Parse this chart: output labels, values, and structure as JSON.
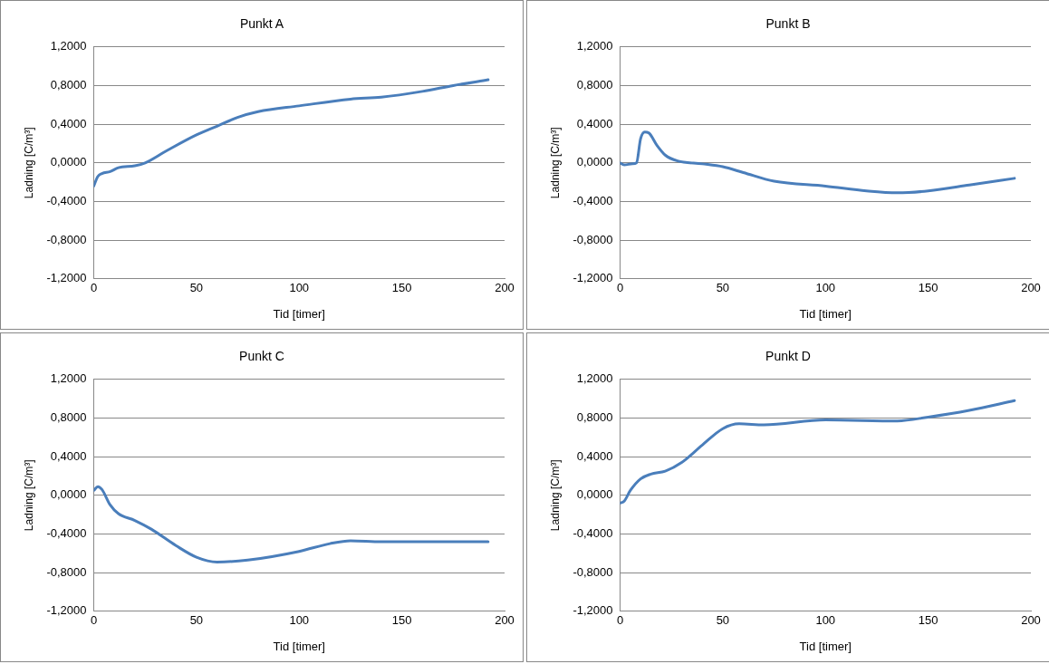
{
  "chart_data": [
    {
      "type": "line",
      "title": "Punkt A",
      "xlabel": "Tid [timer]",
      "ylabel": "Ladning [C/m³]",
      "xlim": [
        0,
        200
      ],
      "xticks": [
        0,
        50,
        100,
        150,
        200
      ],
      "ylim": [
        -1.2,
        1.2
      ],
      "yticks": [
        {
          "value": -1.2,
          "label": "-1,2000"
        },
        {
          "value": -0.8,
          "label": "-0,8000"
        },
        {
          "value": -0.4,
          "label": "-0,4000"
        },
        {
          "value": 0,
          "label": "0,0000"
        },
        {
          "value": 0.4,
          "label": "0,4000"
        },
        {
          "value": 0.8,
          "label": "0,8000"
        },
        {
          "value": 1.2,
          "label": "1,2000"
        }
      ],
      "grid": "y",
      "legend": false,
      "marker": "none",
      "series": [
        {
          "color": "#4a7ebb",
          "x": [
            0,
            2,
            4,
            8,
            12,
            20,
            25,
            35,
            50,
            60,
            70,
            80,
            100,
            125,
            140,
            160,
            175,
            192
          ],
          "values": [
            -0.24,
            -0.14,
            -0.11,
            -0.09,
            -0.05,
            -0.03,
            0.0,
            0.12,
            0.29,
            0.38,
            0.47,
            0.53,
            0.59,
            0.66,
            0.68,
            0.74,
            0.8,
            0.86
          ]
        }
      ]
    },
    {
      "type": "line",
      "title": "Punkt B",
      "xlabel": "Tid [timer]",
      "ylabel": "Ladning [C/m³]",
      "xlim": [
        0,
        200
      ],
      "xticks": [
        0,
        50,
        100,
        150,
        200
      ],
      "ylim": [
        -1.2,
        1.2
      ],
      "yticks": [
        {
          "value": -1.2,
          "label": "-1,2000"
        },
        {
          "value": -0.8,
          "label": "-0,8000"
        },
        {
          "value": -0.4,
          "label": "-0,4000"
        },
        {
          "value": 0,
          "label": "0,0000"
        },
        {
          "value": 0.4,
          "label": "0,4000"
        },
        {
          "value": 0.8,
          "label": "0,8000"
        },
        {
          "value": 1.2,
          "label": "1,2000"
        }
      ],
      "grid": "y",
      "legend": false,
      "marker": "none",
      "series": [
        {
          "color": "#4a7ebb",
          "x": [
            0,
            2,
            6,
            8,
            10,
            12,
            14,
            18,
            22,
            28,
            40,
            50,
            60,
            75,
            100,
            120,
            135,
            150,
            170,
            192
          ],
          "values": [
            0.0,
            -0.02,
            -0.01,
            0.0,
            0.25,
            0.32,
            0.31,
            0.18,
            0.08,
            0.02,
            -0.01,
            -0.04,
            -0.1,
            -0.19,
            -0.24,
            -0.29,
            -0.31,
            -0.29,
            -0.23,
            -0.16
          ]
        }
      ]
    },
    {
      "type": "line",
      "title": "Punkt C",
      "xlabel": "Tid [timer]",
      "ylabel": "Ladning [C/m³]",
      "xlim": [
        0,
        200
      ],
      "xticks": [
        0,
        50,
        100,
        150,
        200
      ],
      "ylim": [
        -1.2,
        1.2
      ],
      "yticks": [
        {
          "value": -1.2,
          "label": "-1,2000"
        },
        {
          "value": -0.8,
          "label": "-0,8000"
        },
        {
          "value": -0.4,
          "label": "-0,4000"
        },
        {
          "value": 0,
          "label": "0,0000"
        },
        {
          "value": 0.4,
          "label": "0,4000"
        },
        {
          "value": 0.8,
          "label": "0,8000"
        },
        {
          "value": 1.2,
          "label": "1,2000"
        }
      ],
      "grid": "y",
      "legend": false,
      "marker": "none",
      "series": [
        {
          "color": "#4a7ebb",
          "x": [
            0,
            2,
            4,
            8,
            12,
            20,
            28,
            40,
            50,
            60,
            75,
            100,
            115,
            125,
            140,
            160,
            192
          ],
          "values": [
            0.05,
            0.09,
            0.06,
            -0.1,
            -0.19,
            -0.26,
            -0.35,
            -0.52,
            -0.64,
            -0.69,
            -0.67,
            -0.58,
            -0.5,
            -0.47,
            -0.48,
            -0.48,
            -0.48
          ]
        }
      ]
    },
    {
      "type": "line",
      "title": "Punkt D",
      "xlabel": "Tid [timer]",
      "ylabel": "Ladning [C/m³]",
      "xlim": [
        0,
        200
      ],
      "xticks": [
        0,
        50,
        100,
        150,
        200
      ],
      "ylim": [
        -1.2,
        1.2
      ],
      "yticks": [
        {
          "value": -1.2,
          "label": "-1,2000"
        },
        {
          "value": -0.8,
          "label": "-0,8000"
        },
        {
          "value": -0.4,
          "label": "-0,4000"
        },
        {
          "value": 0,
          "label": "0,0000"
        },
        {
          "value": 0.4,
          "label": "0,4000"
        },
        {
          "value": 0.8,
          "label": "0,8000"
        },
        {
          "value": 1.2,
          "label": "1,2000"
        }
      ],
      "grid": "y",
      "legend": false,
      "marker": "none",
      "series": [
        {
          "color": "#4a7ebb",
          "x": [
            0,
            2,
            5,
            10,
            15,
            22,
            30,
            40,
            50,
            58,
            70,
            100,
            135,
            150,
            170,
            192
          ],
          "values": [
            -0.08,
            -0.06,
            0.05,
            0.17,
            0.22,
            0.25,
            0.34,
            0.52,
            0.69,
            0.74,
            0.73,
            0.78,
            0.77,
            0.81,
            0.88,
            0.98
          ]
        }
      ]
    }
  ]
}
